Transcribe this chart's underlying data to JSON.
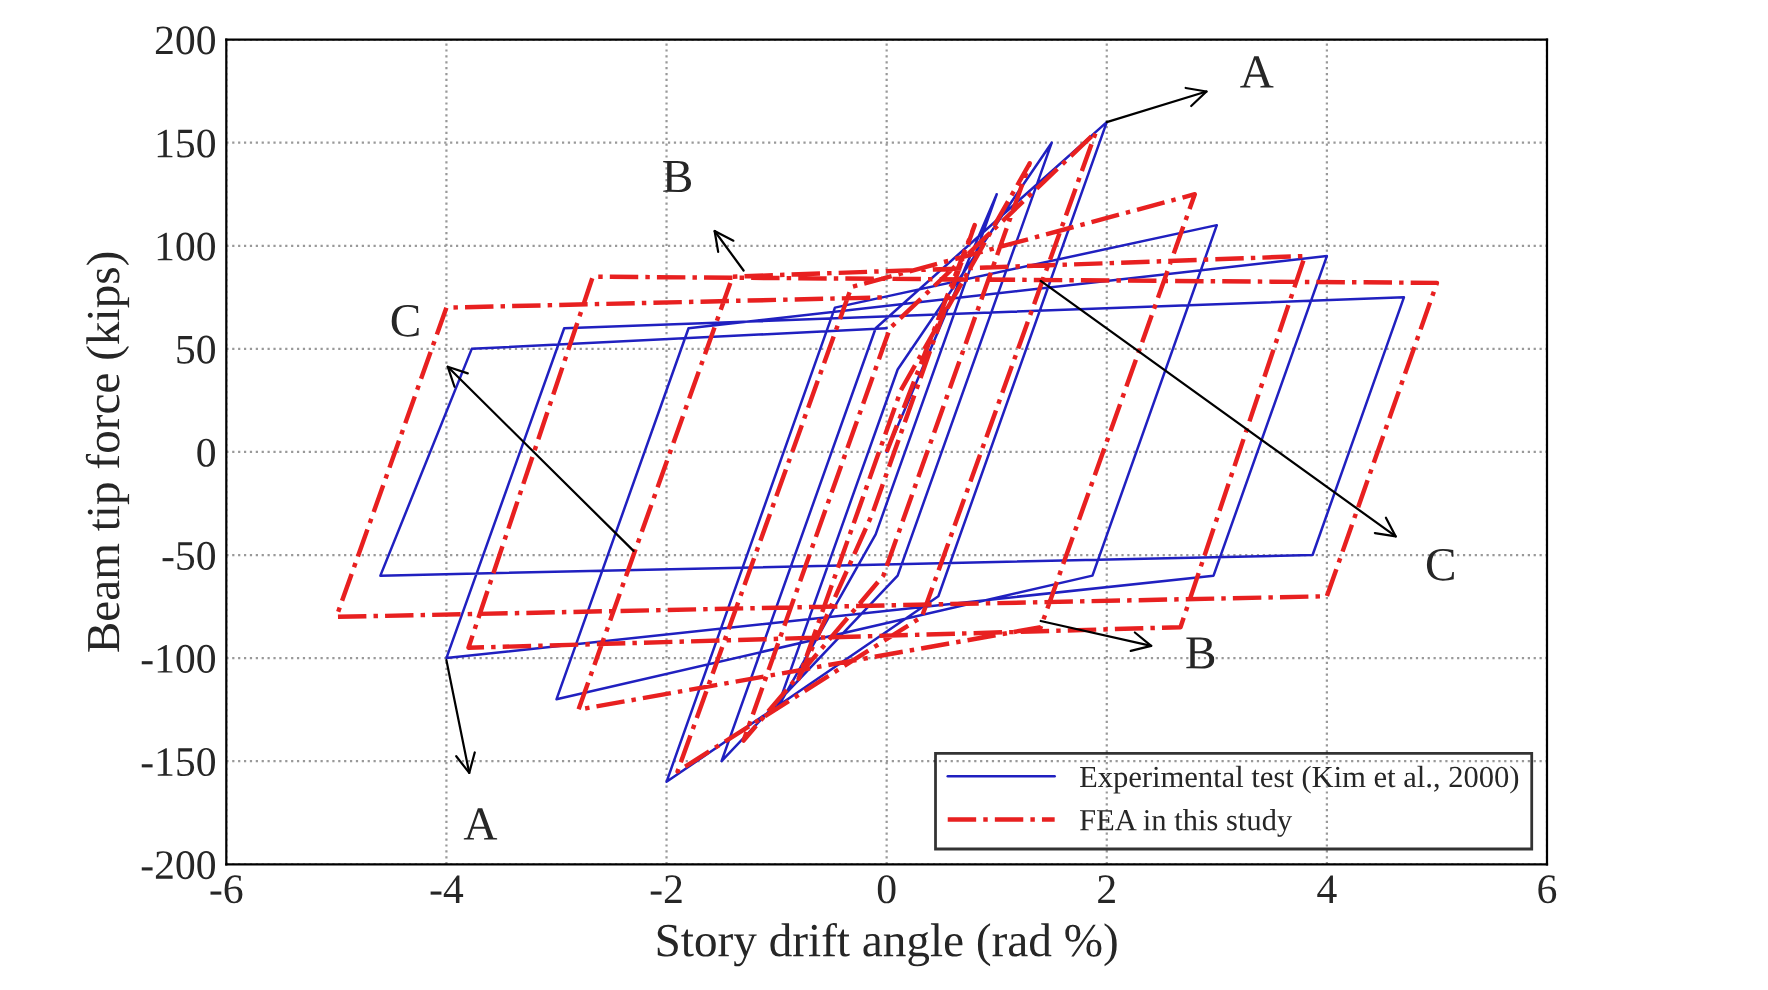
{
  "chart_data": {
    "type": "line",
    "xlabel": "Story drift angle (rad %)",
    "ylabel": "Beam tip force (kips)",
    "xlim": [
      -6,
      6
    ],
    "xticks": [
      -6,
      -4,
      -2,
      0,
      2,
      4,
      6
    ],
    "ylim": [
      -200,
      200
    ],
    "yticks": [
      -200,
      -150,
      -100,
      -50,
      0,
      50,
      100,
      150,
      200
    ],
    "grid": true,
    "legend": "bottom right",
    "series": [
      {
        "name": "Experimental test (Kim et al., 2000)",
        "color": "#2020c0",
        "line_style": "solid",
        "x": [
          0,
          1.0,
          -0.1,
          -1.0,
          0.1,
          1.5,
          0.1,
          -1.5,
          -0.1,
          2.0,
          0.47,
          -2.0,
          -0.47,
          3.0,
          1.87,
          -3.0,
          -1.8,
          4.0,
          2.97,
          -4.0,
          -2.93,
          4.7,
          3.87,
          -4.6,
          -3.77,
          0
        ],
        "values": [
          0,
          125,
          -40,
          -125,
          40,
          150,
          -60,
          -150,
          60,
          160,
          -70,
          -160,
          70,
          110,
          -60,
          -120,
          60,
          95,
          -60,
          -100,
          60,
          75,
          -50,
          -60,
          50,
          60
        ]
      },
      {
        "name": "FEA in this study",
        "color": "#e82020",
        "line_style": "dashdot",
        "x": [
          0,
          0.8,
          -0.13,
          -0.8,
          0.13,
          1.3,
          -0.03,
          -1.3,
          0.03,
          1.9,
          0.32,
          -1.9,
          -0.32,
          2.8,
          1.4,
          -2.8,
          -1.4,
          3.8,
          2.67,
          -3.8,
          -2.67,
          5.0,
          4.0,
          -5.0,
          -4.0,
          0
        ],
        "values": [
          0,
          110,
          -30,
          -110,
          30,
          140,
          -60,
          -140,
          60,
          155,
          -80,
          -155,
          80,
          125,
          -85,
          -125,
          85,
          95,
          -85,
          -95,
          85,
          82,
          -70,
          -80,
          70,
          75
        ]
      }
    ],
    "annotations": [
      {
        "text": "A",
        "x": 2.0,
        "y": 160
      },
      {
        "text": "B",
        "x": -1.3,
        "y": 88
      },
      {
        "text": "C",
        "x": -2.3,
        "y": -48
      },
      {
        "text": "C",
        "x": 1.4,
        "y": 83
      },
      {
        "text": "B",
        "x": 1.4,
        "y": -82
      },
      {
        "text": "A",
        "x": -4.0,
        "y": -101
      }
    ]
  }
}
